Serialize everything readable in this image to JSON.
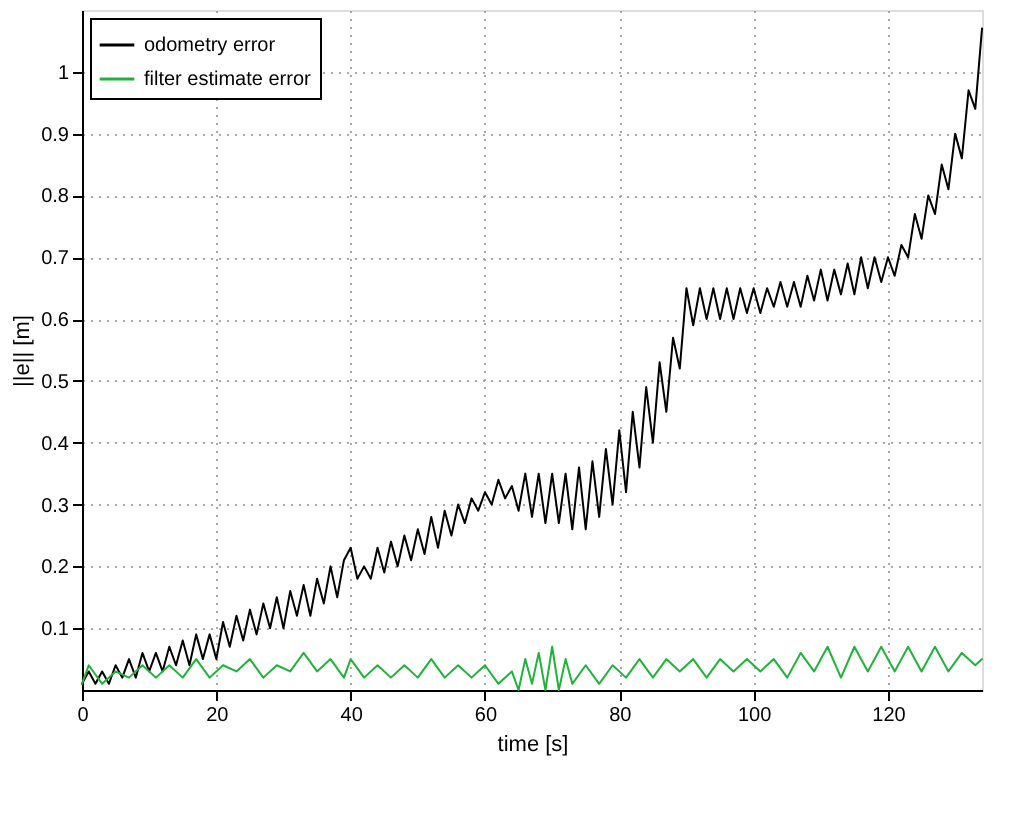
{
  "chart_data": {
    "type": "line",
    "xlabel": "time [s]",
    "ylabel": "||e|| [m]",
    "xlim": [
      0,
      134
    ],
    "ylim": [
      0,
      1.1
    ],
    "xticks": [
      0,
      20,
      40,
      60,
      80,
      100,
      120
    ],
    "yticks": [
      0.1,
      0.2,
      0.3,
      0.4,
      0.5,
      0.6,
      0.7,
      0.8,
      0.9,
      1
    ],
    "grid": true,
    "legend": "top left",
    "marker": "none",
    "line_style": "solid",
    "series": [
      {
        "name": "odometry error",
        "color": "#000000",
        "x": [
          0,
          1,
          2,
          3,
          4,
          5,
          6,
          7,
          8,
          9,
          10,
          11,
          12,
          13,
          14,
          15,
          16,
          17,
          18,
          19,
          20,
          21,
          22,
          23,
          24,
          25,
          26,
          27,
          28,
          29,
          30,
          31,
          32,
          33,
          34,
          35,
          36,
          37,
          38,
          39,
          40,
          41,
          42,
          43,
          44,
          45,
          46,
          47,
          48,
          49,
          50,
          51,
          52,
          53,
          54,
          55,
          56,
          57,
          58,
          59,
          60,
          61,
          62,
          63,
          64,
          65,
          66,
          67,
          68,
          69,
          70,
          71,
          72,
          73,
          74,
          75,
          76,
          77,
          78,
          79,
          80,
          81,
          82,
          83,
          84,
          85,
          86,
          87,
          88,
          89,
          90,
          91,
          92,
          93,
          94,
          95,
          96,
          97,
          98,
          99,
          100,
          101,
          102,
          103,
          104,
          105,
          106,
          107,
          108,
          109,
          110,
          111,
          112,
          113,
          114,
          115,
          116,
          117,
          118,
          119,
          120,
          121,
          122,
          123,
          124,
          125,
          126,
          127,
          128,
          129,
          130,
          131,
          132,
          133,
          134
        ],
        "values": [
          0.01,
          0.03,
          0.01,
          0.03,
          0.01,
          0.04,
          0.02,
          0.05,
          0.02,
          0.06,
          0.03,
          0.06,
          0.03,
          0.07,
          0.04,
          0.08,
          0.04,
          0.09,
          0.05,
          0.09,
          0.05,
          0.11,
          0.07,
          0.12,
          0.08,
          0.13,
          0.09,
          0.14,
          0.1,
          0.15,
          0.1,
          0.16,
          0.12,
          0.17,
          0.12,
          0.18,
          0.14,
          0.2,
          0.15,
          0.21,
          0.23,
          0.18,
          0.2,
          0.18,
          0.23,
          0.19,
          0.24,
          0.2,
          0.25,
          0.21,
          0.26,
          0.22,
          0.28,
          0.23,
          0.29,
          0.25,
          0.3,
          0.27,
          0.31,
          0.29,
          0.32,
          0.3,
          0.34,
          0.31,
          0.33,
          0.29,
          0.35,
          0.28,
          0.35,
          0.27,
          0.35,
          0.27,
          0.35,
          0.26,
          0.36,
          0.26,
          0.37,
          0.28,
          0.39,
          0.3,
          0.42,
          0.32,
          0.45,
          0.36,
          0.49,
          0.4,
          0.53,
          0.45,
          0.57,
          0.52,
          0.65,
          0.59,
          0.65,
          0.6,
          0.65,
          0.6,
          0.65,
          0.6,
          0.65,
          0.61,
          0.65,
          0.61,
          0.65,
          0.62,
          0.66,
          0.62,
          0.66,
          0.62,
          0.67,
          0.63,
          0.68,
          0.63,
          0.68,
          0.64,
          0.69,
          0.64,
          0.7,
          0.65,
          0.7,
          0.66,
          0.7,
          0.67,
          0.72,
          0.7,
          0.77,
          0.73,
          0.8,
          0.77,
          0.85,
          0.81,
          0.9,
          0.86,
          0.97,
          0.94,
          1.07
        ]
      },
      {
        "name": "filter estimate error",
        "color": "#1fb33a",
        "x": [
          0,
          1,
          3,
          5,
          7,
          9,
          11,
          13,
          15,
          17,
          19,
          21,
          23,
          25,
          27,
          29,
          31,
          33,
          35,
          37,
          39,
          40,
          42,
          44,
          46,
          48,
          50,
          52,
          54,
          56,
          58,
          60,
          62,
          64,
          65,
          66,
          67,
          68,
          69,
          70,
          71,
          72,
          73,
          75,
          77,
          79,
          81,
          83,
          85,
          87,
          89,
          91,
          93,
          95,
          97,
          99,
          101,
          103,
          105,
          107,
          109,
          111,
          113,
          115,
          117,
          119,
          121,
          123,
          125,
          127,
          129,
          131,
          133,
          134
        ],
        "values": [
          0.01,
          0.04,
          0.01,
          0.03,
          0.02,
          0.04,
          0.02,
          0.04,
          0.02,
          0.05,
          0.02,
          0.04,
          0.03,
          0.05,
          0.02,
          0.04,
          0.03,
          0.06,
          0.03,
          0.05,
          0.02,
          0.05,
          0.02,
          0.04,
          0.02,
          0.04,
          0.02,
          0.05,
          0.02,
          0.04,
          0.02,
          0.04,
          0.01,
          0.03,
          0.0,
          0.05,
          0.01,
          0.06,
          0.0,
          0.07,
          0.0,
          0.05,
          0.01,
          0.04,
          0.01,
          0.04,
          0.02,
          0.05,
          0.02,
          0.05,
          0.03,
          0.05,
          0.02,
          0.05,
          0.03,
          0.05,
          0.03,
          0.05,
          0.02,
          0.06,
          0.03,
          0.07,
          0.02,
          0.07,
          0.03,
          0.07,
          0.03,
          0.07,
          0.03,
          0.07,
          0.03,
          0.06,
          0.04,
          0.05
        ]
      }
    ]
  }
}
